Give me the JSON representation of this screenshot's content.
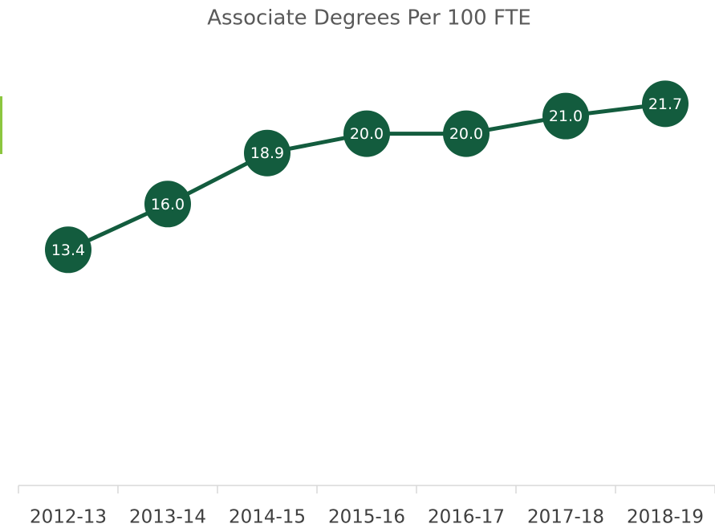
{
  "chart_data": {
    "type": "line",
    "title": "Associate Degrees Per 100 FTE",
    "categories": [
      "2012-13",
      "2013-14",
      "2014-15",
      "2015-16",
      "2016-17",
      "2017-18",
      "2018-19"
    ],
    "values": [
      13.4,
      16.0,
      18.9,
      20.0,
      20.0,
      21.0,
      21.7
    ],
    "value_labels": [
      "13.4",
      "16.0",
      "18.9",
      "20.0",
      "20.0",
      "21.0",
      "21.7"
    ],
    "color": "#135c3e",
    "ylim": [
      0,
      25
    ]
  }
}
